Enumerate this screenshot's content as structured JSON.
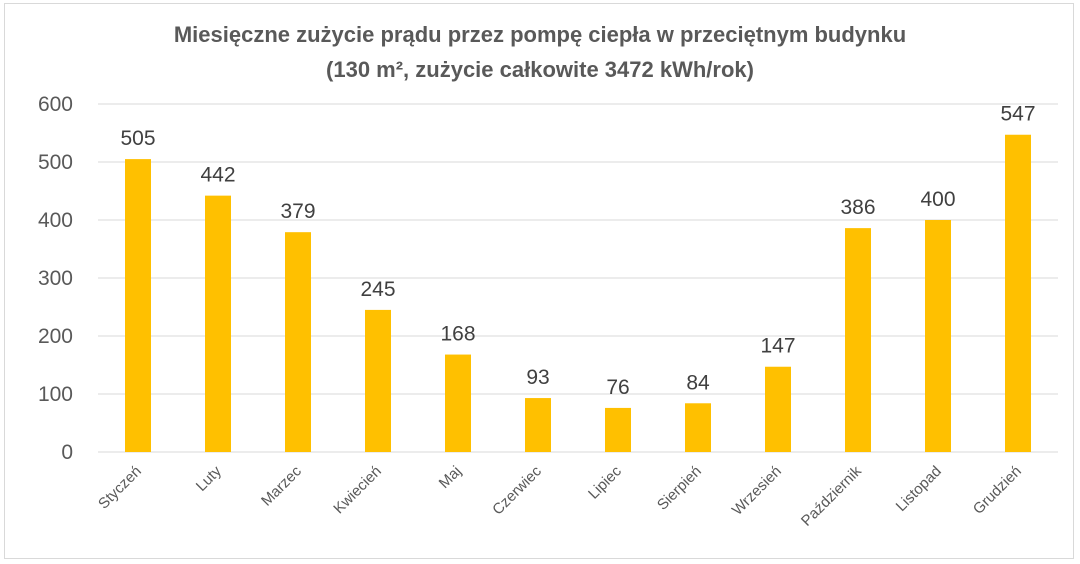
{
  "title_line1": "Miesięczne zużycie prądu przez pompę ciepła w przeciętnym budynku",
  "title_line2": "(130 m², zużycie całkowite 3472 kWh/rok)",
  "colors": {
    "bar": "#FFC000",
    "grid": "#d9d9d9",
    "text": "#595959"
  },
  "chart_data": {
    "type": "bar",
    "title": "Miesięczne zużycie prądu przez pompę ciepła w przeciętnym budynku (130 m², zużycie całkowite 3472 kWh/rok)",
    "xlabel": "",
    "ylabel": "",
    "categories": [
      "Styczeń",
      "Luty",
      "Marzec",
      "Kwiecień",
      "Maj",
      "Czerwiec",
      "Lipiec",
      "Sierpień",
      "Wrzesień",
      "Październik",
      "Listopad",
      "Grudzień"
    ],
    "values": [
      505,
      442,
      379,
      245,
      168,
      93,
      76,
      84,
      147,
      386,
      400,
      547
    ],
    "ylim": [
      0,
      600
    ],
    "yticks": [
      0,
      100,
      200,
      300,
      400,
      500,
      600
    ],
    "grid": true,
    "legend": "none",
    "data_labels": true
  }
}
